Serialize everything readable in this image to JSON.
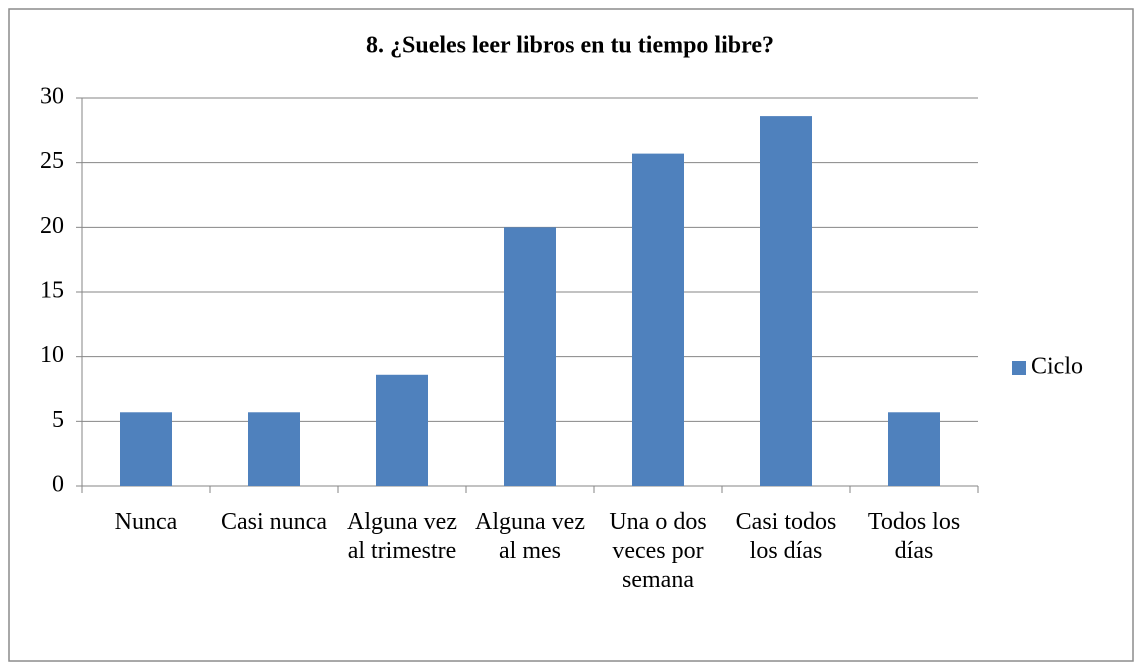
{
  "chart_data": {
    "type": "bar",
    "title": "8. ¿Sueles leer libros en tu tiempo libre?",
    "categories": [
      "Nunca",
      "Casi nunca",
      "Alguna vez al trimestre",
      "Alguna vez al mes",
      "Una o dos veces por semana",
      "Casi todos los días",
      "Todos los días"
    ],
    "series": [
      {
        "name": "Ciclo",
        "color": "#4f81bd",
        "values": [
          5.7,
          5.7,
          8.6,
          20,
          25.7,
          28.6,
          5.7
        ]
      }
    ],
    "ylim": [
      0,
      30
    ],
    "yticks": [
      0,
      5,
      10,
      15,
      20,
      25,
      30
    ],
    "grid": true,
    "legend": "right"
  }
}
